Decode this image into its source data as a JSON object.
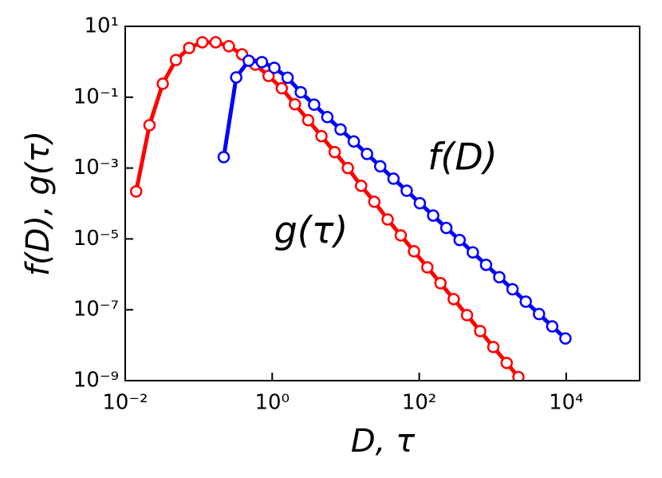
{
  "chart_data": {
    "type": "line",
    "xlabel": "D, τ",
    "ylabel": "f(D), g(τ)",
    "xscale": "log",
    "yscale": "log",
    "xlim": [
      0.01,
      100000
    ],
    "ylim": [
      1e-09,
      10
    ],
    "xticks": [
      {
        "value": 0.01,
        "label": "10⁻²"
      },
      {
        "value": 1,
        "label": "10⁰"
      },
      {
        "value": 100,
        "label": "10²"
      },
      {
        "value": 10000,
        "label": "10⁴"
      }
    ],
    "yticks": [
      {
        "value": 1e-09,
        "label": "10⁻⁹"
      },
      {
        "value": 1e-07,
        "label": "10⁻⁷"
      },
      {
        "value": 1e-05,
        "label": "10⁻⁵"
      },
      {
        "value": 0.001,
        "label": "10⁻³"
      },
      {
        "value": 0.1,
        "label": "10⁻¹"
      },
      {
        "value": 10,
        "label": "10¹"
      }
    ],
    "grid": false,
    "series": [
      {
        "name": "g(τ)",
        "color": "#ff0000",
        "x": [
          0.0141,
          0.0214,
          0.0324,
          0.049,
          0.0741,
          0.112,
          0.17,
          0.257,
          0.389,
          0.589,
          0.891,
          1.35,
          2.04,
          3.09,
          4.68,
          7.08,
          10.7,
          16.2,
          24.5,
          37.2,
          56.2,
          85.1,
          129,
          195,
          295,
          447,
          676,
          1020,
          1550,
          2240
        ],
        "values": [
          0.000219,
          0.0162,
          0.24,
          1.12,
          2.45,
          3.55,
          3.55,
          2.75,
          1.62,
          0.832,
          0.398,
          0.178,
          0.0631,
          0.0224,
          0.00794,
          0.00282,
          0.001,
          0.000316,
          0.000112,
          3.55e-05,
          1.26e-05,
          4.47e-06,
          1.58e-06,
          5.62e-07,
          2e-07,
          7.08e-08,
          2.51e-08,
          8.91e-09,
          3.16e-09,
          1.26e-09
        ]
      },
      {
        "name": "f(D)",
        "color": "#0000ff",
        "x": [
          0.219,
          0.324,
          0.479,
          0.724,
          1.07,
          1.62,
          2.45,
          3.72,
          5.62,
          8.51,
          12.9,
          19.5,
          29.5,
          44.7,
          67.6,
          102,
          155,
          234,
          355,
          537,
          813,
          1230,
          1860,
          2820,
          4270,
          6460,
          9770
        ],
        "values": [
          0.00204,
          0.363,
          1.07,
          0.977,
          0.676,
          0.355,
          0.138,
          0.0617,
          0.0275,
          0.0123,
          0.00562,
          0.00251,
          0.00112,
          0.000501,
          0.000229,
          0.000102,
          4.57e-05,
          2.04e-05,
          9.33e-06,
          4.17e-06,
          1.86e-06,
          8.32e-07,
          3.8e-07,
          1.7e-07,
          7.59e-08,
          3.39e-08,
          1.55e-08
        ]
      }
    ]
  }
}
